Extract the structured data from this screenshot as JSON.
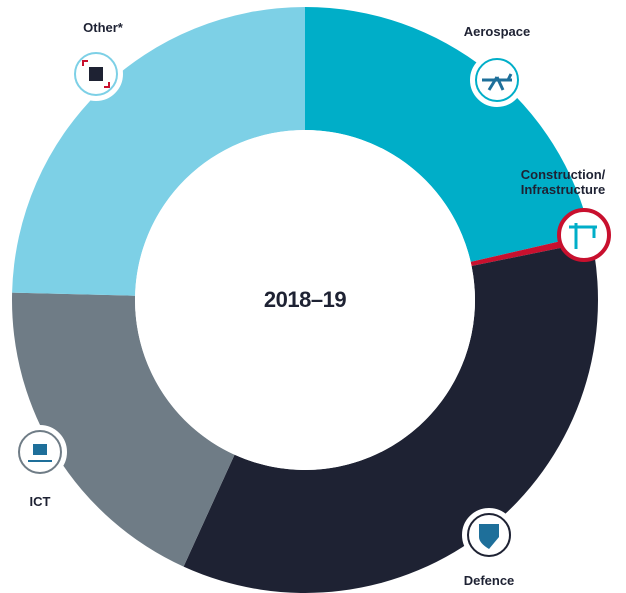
{
  "chart_data": {
    "type": "donut",
    "title": "2018–19",
    "categories": [
      "Aerospace",
      "Construction/\nInfrastructure",
      "Defence",
      "ICT",
      "Other*"
    ],
    "values": [
      21.4,
      0.4,
      35,
      18.6,
      24.6
    ],
    "colors": [
      "#00aec8",
      "#c8102e",
      "#1e2233",
      "#6f7c86",
      "#7dd0e6"
    ]
  }
}
